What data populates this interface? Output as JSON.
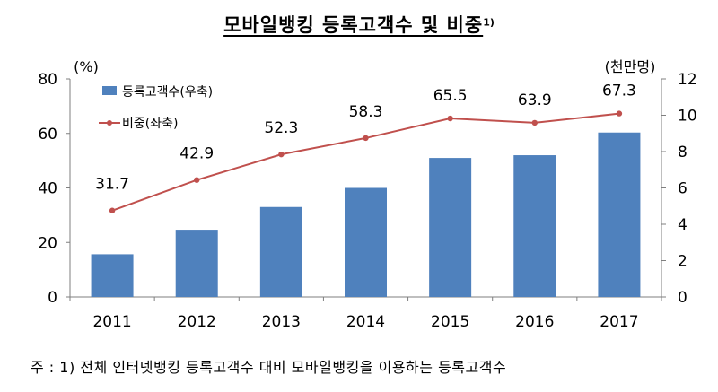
{
  "title": "모바일뱅킹 등록고객수 및 비중",
  "title_superscript": "1)",
  "footnote": "주 : 1) 전체 인터넷뱅킹 등록고객수 대비 모바일뱅킹을 이용하는 등록고객수",
  "colors": {
    "bar": "#4F81BD",
    "line": "#C0504D",
    "axis": "#7f7f7f"
  },
  "chart_data": {
    "type": "bar",
    "categories": [
      "2011",
      "2012",
      "2013",
      "2014",
      "2015",
      "2016",
      "2017"
    ],
    "series": [
      {
        "name": "등록고객수(우축)",
        "type": "bar",
        "axis": "right",
        "values": [
          2.35,
          3.7,
          4.95,
          6.0,
          7.65,
          7.8,
          9.05
        ]
      },
      {
        "name": "비중(좌축)",
        "type": "line",
        "axis": "left",
        "values": [
          31.7,
          42.9,
          52.3,
          58.3,
          65.5,
          63.9,
          67.3
        ],
        "labels": [
          "31.7",
          "42.9",
          "52.3",
          "58.3",
          "65.5",
          "63.9",
          "67.3"
        ]
      }
    ],
    "left_axis": {
      "unit": "(%)",
      "min": 0,
      "max": 80,
      "ticks": [
        0,
        20,
        40,
        60,
        80
      ]
    },
    "right_axis": {
      "unit": "(천만명)",
      "min": 0,
      "max": 12,
      "ticks": [
        0,
        2,
        4,
        6,
        8,
        10,
        12
      ]
    },
    "legend_position": "top-left",
    "grid": false
  }
}
